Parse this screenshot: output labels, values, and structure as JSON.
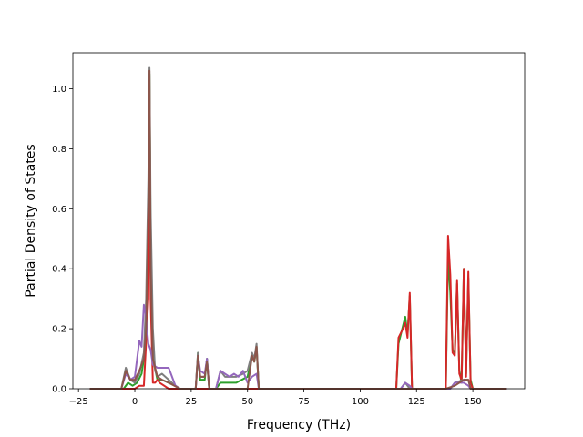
{
  "chart_data": {
    "type": "line",
    "title": "",
    "xlabel": "Frequency (THz)",
    "ylabel": "Partial Density of States",
    "xlim": [
      -27.5,
      173
    ],
    "ylim": [
      0,
      1.12
    ],
    "xticks": [
      {
        "value": -25,
        "label": "−25"
      },
      {
        "value": 0,
        "label": "0"
      },
      {
        "value": 25,
        "label": "25"
      },
      {
        "value": 50,
        "label": "50"
      },
      {
        "value": 75,
        "label": "75"
      },
      {
        "value": 100,
        "label": "100"
      },
      {
        "value": 125,
        "label": "125"
      },
      {
        "value": 150,
        "label": "150"
      }
    ],
    "yticks": [
      {
        "value": 0.0,
        "label": "0.0"
      },
      {
        "value": 0.2,
        "label": "0.2"
      },
      {
        "value": 0.4,
        "label": "0.4"
      },
      {
        "value": 0.6,
        "label": "0.6"
      },
      {
        "value": 0.8,
        "label": "0.8"
      },
      {
        "value": 1.0,
        "label": "1.0"
      }
    ],
    "grid": false,
    "legend": "none",
    "series": [
      {
        "color": "#2ca02c",
        "points": [
          [
            -20,
            0
          ],
          [
            -5,
            0
          ],
          [
            -3,
            0.02
          ],
          [
            -1,
            0.01
          ],
          [
            1,
            0.02
          ],
          [
            3,
            0.05
          ],
          [
            5,
            0.15
          ],
          [
            6,
            0.6
          ],
          [
            6.5,
            1.05
          ],
          [
            7,
            0.5
          ],
          [
            8,
            0.1
          ],
          [
            10,
            0.03
          ],
          [
            12,
            0.03
          ],
          [
            15,
            0.02
          ],
          [
            18,
            0.01
          ],
          [
            20,
            0
          ],
          [
            27,
            0
          ],
          [
            28,
            0.12
          ],
          [
            29,
            0.03
          ],
          [
            31,
            0.03
          ],
          [
            32,
            0.1
          ],
          [
            33,
            0
          ],
          [
            36,
            0
          ],
          [
            38,
            0.02
          ],
          [
            45,
            0.02
          ],
          [
            50,
            0.04
          ],
          [
            52,
            0.11
          ],
          [
            53,
            0.09
          ],
          [
            54,
            0.14
          ],
          [
            55,
            0
          ],
          [
            116,
            0
          ],
          [
            117,
            0.15
          ],
          [
            119,
            0.21
          ],
          [
            120,
            0.24
          ],
          [
            121,
            0.18
          ],
          [
            122,
            0.31
          ],
          [
            123,
            0
          ],
          [
            138,
            0
          ],
          [
            139,
            0.44
          ],
          [
            140,
            0.32
          ],
          [
            141,
            0.13
          ],
          [
            142,
            0.12
          ],
          [
            143,
            0.35
          ],
          [
            144,
            0.06
          ],
          [
            145,
            0.02
          ],
          [
            146,
            0.4
          ],
          [
            147,
            0.05
          ],
          [
            148,
            0.37
          ],
          [
            149,
            0.03
          ],
          [
            150,
            0
          ],
          [
            165,
            0
          ]
        ]
      },
      {
        "color": "#d62728",
        "points": [
          [
            -20,
            0
          ],
          [
            0,
            0
          ],
          [
            2,
            0.01
          ],
          [
            4,
            0.01
          ],
          [
            6,
            0.3
          ],
          [
            6.5,
            0.8
          ],
          [
            7,
            0.3
          ],
          [
            8,
            0.02
          ],
          [
            9,
            0.02
          ],
          [
            10,
            0.03
          ],
          [
            11,
            0.02
          ],
          [
            13,
            0.01
          ],
          [
            15,
            0
          ],
          [
            116,
            0
          ],
          [
            117,
            0.17
          ],
          [
            119,
            0.2
          ],
          [
            120,
            0.22
          ],
          [
            121,
            0.17
          ],
          [
            122,
            0.32
          ],
          [
            123,
            0
          ],
          [
            138,
            0
          ],
          [
            139,
            0.51
          ],
          [
            140,
            0.38
          ],
          [
            141,
            0.12
          ],
          [
            142,
            0.11
          ],
          [
            143,
            0.36
          ],
          [
            144,
            0.05
          ],
          [
            145,
            0.03
          ],
          [
            146,
            0.4
          ],
          [
            147,
            0.04
          ],
          [
            148,
            0.39
          ],
          [
            149,
            0.02
          ],
          [
            150,
            0
          ],
          [
            165,
            0
          ]
        ]
      },
      {
        "color": "#7f7f7f",
        "points": [
          [
            -20,
            0
          ],
          [
            -6,
            0
          ],
          [
            -4,
            0.07
          ],
          [
            -2,
            0.03
          ],
          [
            0,
            0.02
          ],
          [
            2,
            0.05
          ],
          [
            4,
            0.12
          ],
          [
            5,
            0.3
          ],
          [
            6,
            0.7
          ],
          [
            6.5,
            1.07
          ],
          [
            7,
            0.6
          ],
          [
            8,
            0.2
          ],
          [
            9,
            0.06
          ],
          [
            10,
            0.04
          ],
          [
            12,
            0.05
          ],
          [
            15,
            0.03
          ],
          [
            18,
            0.01
          ],
          [
            20,
            0
          ],
          [
            27,
            0
          ],
          [
            28,
            0.12
          ],
          [
            29,
            0.04
          ],
          [
            31,
            0.04
          ],
          [
            32,
            0.1
          ],
          [
            33,
            0
          ],
          [
            36,
            0
          ],
          [
            38,
            0.06
          ],
          [
            40,
            0.04
          ],
          [
            45,
            0.04
          ],
          [
            48,
            0.05
          ],
          [
            50,
            0.06
          ],
          [
            52,
            0.12
          ],
          [
            53,
            0.1
          ],
          [
            54,
            0.15
          ],
          [
            55,
            0
          ],
          [
            118,
            0
          ],
          [
            120,
            0.02
          ],
          [
            122,
            0
          ],
          [
            140,
            0
          ],
          [
            142,
            0.02
          ],
          [
            146,
            0.03
          ],
          [
            148,
            0.03
          ],
          [
            149,
            0
          ],
          [
            165,
            0
          ]
        ]
      },
      {
        "color": "#9467bd",
        "points": [
          [
            -20,
            0
          ],
          [
            -6,
            0
          ],
          [
            -4,
            0.05
          ],
          [
            -2,
            0.03
          ],
          [
            0,
            0.04
          ],
          [
            2,
            0.16
          ],
          [
            3,
            0.14
          ],
          [
            4,
            0.28
          ],
          [
            5,
            0.24
          ],
          [
            6,
            0.15
          ],
          [
            7,
            0.13
          ],
          [
            8,
            0.08
          ],
          [
            10,
            0.07
          ],
          [
            12,
            0.07
          ],
          [
            14,
            0.07
          ],
          [
            15,
            0.07
          ],
          [
            16,
            0.05
          ],
          [
            18,
            0.01
          ],
          [
            20,
            0
          ],
          [
            27,
            0
          ],
          [
            28,
            0.11
          ],
          [
            29,
            0.06
          ],
          [
            31,
            0.05
          ],
          [
            32,
            0.1
          ],
          [
            33,
            0
          ],
          [
            36,
            0
          ],
          [
            38,
            0.06
          ],
          [
            40,
            0.05
          ],
          [
            42,
            0.04
          ],
          [
            44,
            0.05
          ],
          [
            46,
            0.04
          ],
          [
            48,
            0.06
          ],
          [
            50,
            0.02
          ],
          [
            52,
            0.04
          ],
          [
            54,
            0.05
          ],
          [
            55,
            0
          ],
          [
            118,
            0
          ],
          [
            120,
            0.02
          ],
          [
            122,
            0.01
          ],
          [
            123,
            0
          ],
          [
            140,
            0
          ],
          [
            142,
            0.02
          ],
          [
            146,
            0.02
          ],
          [
            148,
            0.01
          ],
          [
            149,
            0
          ],
          [
            165,
            0
          ]
        ]
      },
      {
        "color": "#8c564b",
        "points": [
          [
            -20,
            0
          ],
          [
            -6,
            0
          ],
          [
            -4,
            0.06
          ],
          [
            -2,
            0.03
          ],
          [
            0,
            0.03
          ],
          [
            2,
            0.06
          ],
          [
            4,
            0.1
          ],
          [
            5,
            0.2
          ],
          [
            6,
            0.6
          ],
          [
            6.5,
            1.06
          ],
          [
            7,
            0.4
          ],
          [
            8,
            0.1
          ],
          [
            10,
            0.04
          ],
          [
            12,
            0.03
          ],
          [
            15,
            0.02
          ],
          [
            20,
            0
          ],
          [
            27,
            0
          ],
          [
            28,
            0.11
          ],
          [
            29,
            0.04
          ],
          [
            31,
            0.04
          ],
          [
            32,
            0.09
          ],
          [
            33,
            0
          ],
          [
            50,
            0
          ],
          [
            52,
            0.11
          ],
          [
            53,
            0.09
          ],
          [
            54,
            0.14
          ],
          [
            55,
            0
          ],
          [
            138,
            0
          ],
          [
            142,
            0.01
          ],
          [
            146,
            0.03
          ],
          [
            148,
            0.03
          ],
          [
            149,
            0
          ],
          [
            165,
            0
          ]
        ]
      }
    ]
  }
}
